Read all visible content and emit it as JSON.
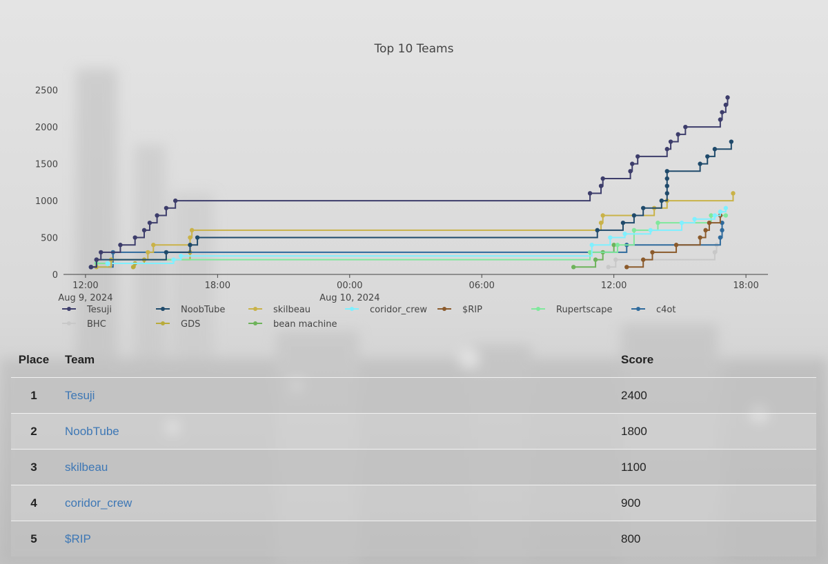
{
  "chart_data": {
    "type": "line",
    "title": "Top 10 Teams",
    "xlabel": "",
    "ylabel": "",
    "ylim": [
      0,
      2600
    ],
    "yticks": [
      0,
      500,
      1000,
      1500,
      2000,
      2500
    ],
    "xlim": [
      "2024-08-09 11:00",
      "2024-08-10 19:00"
    ],
    "xticks": [
      {
        "t": "2024-08-09 12:00",
        "label": "12:00",
        "sub": "Aug 9, 2024"
      },
      {
        "t": "2024-08-09 18:00",
        "label": "18:00",
        "sub": ""
      },
      {
        "t": "2024-08-10 00:00",
        "label": "00:00",
        "sub": "Aug 10, 2024"
      },
      {
        "t": "2024-08-10 06:00",
        "label": "06:00",
        "sub": ""
      },
      {
        "t": "2024-08-10 12:00",
        "label": "12:00",
        "sub": ""
      },
      {
        "t": "2024-08-10 18:00",
        "label": "18:00",
        "sub": ""
      }
    ],
    "grid": false,
    "legend_position": "bottom",
    "series": [
      {
        "name": "Tesuji",
        "color": "#3d3d6b",
        "points": [
          [
            "2024-08-09 12:15",
            100
          ],
          [
            "2024-08-09 12:30",
            200
          ],
          [
            "2024-08-09 12:42",
            300
          ],
          [
            "2024-08-09 13:35",
            400
          ],
          [
            "2024-08-09 14:15",
            500
          ],
          [
            "2024-08-09 14:40",
            600
          ],
          [
            "2024-08-09 14:55",
            700
          ],
          [
            "2024-08-09 15:15",
            800
          ],
          [
            "2024-08-09 15:40",
            900
          ],
          [
            "2024-08-09 16:05",
            1000
          ],
          [
            "2024-08-10 10:55",
            1100
          ],
          [
            "2024-08-10 11:25",
            1200
          ],
          [
            "2024-08-10 11:30",
            1300
          ],
          [
            "2024-08-10 12:45",
            1400
          ],
          [
            "2024-08-10 12:50",
            1500
          ],
          [
            "2024-08-10 13:05",
            1600
          ],
          [
            "2024-08-10 14:25",
            1700
          ],
          [
            "2024-08-10 14:35",
            1800
          ],
          [
            "2024-08-10 14:55",
            1900
          ],
          [
            "2024-08-10 15:15",
            2000
          ],
          [
            "2024-08-10 16:50",
            2100
          ],
          [
            "2024-08-10 16:55",
            2200
          ],
          [
            "2024-08-10 17:05",
            2300
          ],
          [
            "2024-08-10 17:10",
            2400
          ]
        ]
      },
      {
        "name": "NoobTube",
        "color": "#1f4a6b",
        "points": [
          [
            "2024-08-09 12:15",
            100
          ],
          [
            "2024-08-09 12:30",
            200
          ],
          [
            "2024-08-09 15:40",
            300
          ],
          [
            "2024-08-09 16:45",
            400
          ],
          [
            "2024-08-09 17:05",
            500
          ],
          [
            "2024-08-10 11:15",
            600
          ],
          [
            "2024-08-10 12:25",
            700
          ],
          [
            "2024-08-10 12:55",
            800
          ],
          [
            "2024-08-10 13:20",
            900
          ],
          [
            "2024-08-10 14:10",
            1000
          ],
          [
            "2024-08-10 14:25",
            1100
          ],
          [
            "2024-08-10 14:25",
            1200
          ],
          [
            "2024-08-10 14:25",
            1300
          ],
          [
            "2024-08-10 14:25",
            1400
          ],
          [
            "2024-08-10 15:55",
            1500
          ],
          [
            "2024-08-10 16:15",
            1600
          ],
          [
            "2024-08-10 16:35",
            1700
          ],
          [
            "2024-08-10 17:20",
            1800
          ]
        ]
      },
      {
        "name": "skilbeau",
        "color": "#c9b248",
        "points": [
          [
            "2024-08-09 12:30",
            100
          ],
          [
            "2024-08-09 13:10",
            200
          ],
          [
            "2024-08-09 14:50",
            300
          ],
          [
            "2024-08-09 15:05",
            400
          ],
          [
            "2024-08-09 16:45",
            500
          ],
          [
            "2024-08-09 16:50",
            600
          ],
          [
            "2024-08-10 11:25",
            700
          ],
          [
            "2024-08-10 11:30",
            800
          ],
          [
            "2024-08-10 13:50",
            900
          ],
          [
            "2024-08-10 14:25",
            1000
          ],
          [
            "2024-08-10 17:25",
            1100
          ]
        ]
      },
      {
        "name": "coridor_crew",
        "color": "#7ff0ff",
        "points": [
          [
            "2024-08-09 12:30",
            100
          ],
          [
            "2024-08-09 13:00",
            150
          ],
          [
            "2024-08-09 16:00",
            200
          ],
          [
            "2024-08-09 16:20",
            250
          ],
          [
            "2024-08-10 11:00",
            400
          ],
          [
            "2024-08-10 11:50",
            500
          ],
          [
            "2024-08-10 12:30",
            550
          ],
          [
            "2024-08-10 13:40",
            600
          ],
          [
            "2024-08-10 15:05",
            700
          ],
          [
            "2024-08-10 15:40",
            750
          ],
          [
            "2024-08-10 16:35",
            800
          ],
          [
            "2024-08-10 16:50",
            850
          ],
          [
            "2024-08-10 17:05",
            900
          ]
        ]
      },
      {
        "name": "$RIP",
        "color": "#8b5a2b",
        "points": [
          [
            "2024-08-10 12:35",
            100
          ],
          [
            "2024-08-10 13:20",
            200
          ],
          [
            "2024-08-10 13:45",
            300
          ],
          [
            "2024-08-10 14:50",
            400
          ],
          [
            "2024-08-10 15:55",
            500
          ],
          [
            "2024-08-10 16:10",
            600
          ],
          [
            "2024-08-10 16:20",
            700
          ],
          [
            "2024-08-10 16:50",
            800
          ]
        ]
      },
      {
        "name": "Rupertscape",
        "color": "#7fe89c",
        "points": [
          [
            "2024-08-09 12:30",
            150
          ],
          [
            "2024-08-09 13:10",
            200
          ],
          [
            "2024-08-10 10:55",
            300
          ],
          [
            "2024-08-10 12:10",
            400
          ],
          [
            "2024-08-10 12:55",
            600
          ],
          [
            "2024-08-10 14:00",
            700
          ],
          [
            "2024-08-10 16:25",
            800
          ],
          [
            "2024-08-10 17:05",
            800
          ]
        ]
      },
      {
        "name": "c4ot",
        "color": "#2e6a9c",
        "points": [
          [
            "2024-08-09 12:15",
            100
          ],
          [
            "2024-08-09 13:15",
            300
          ],
          [
            "2024-08-10 12:35",
            400
          ],
          [
            "2024-08-10 16:50",
            500
          ],
          [
            "2024-08-10 16:55",
            600
          ],
          [
            "2024-08-10 16:55",
            700
          ]
        ]
      },
      {
        "name": "BHC",
        "color": "#c8c8c8",
        "points": [
          [
            "2024-08-10 11:45",
            100
          ],
          [
            "2024-08-10 12:05",
            200
          ],
          [
            "2024-08-10 16:35",
            300
          ],
          [
            "2024-08-10 16:40",
            400
          ]
        ]
      },
      {
        "name": "GDS",
        "color": "#b9ab3b",
        "points": [
          [
            "2024-08-09 14:10",
            100
          ],
          [
            "2024-08-09 14:15",
            150
          ],
          [
            "2024-08-09 14:40",
            200
          ],
          [
            "2024-08-09 16:45",
            300
          ]
        ]
      },
      {
        "name": "bean machine",
        "color": "#6db35a",
        "points": [
          [
            "2024-08-10 10:10",
            100
          ],
          [
            "2024-08-10 11:10",
            200
          ],
          [
            "2024-08-10 11:30",
            300
          ],
          [
            "2024-08-10 12:00",
            400
          ]
        ]
      }
    ]
  },
  "leaderboard": {
    "headers": {
      "place": "Place",
      "team": "Team",
      "score": "Score"
    },
    "rows": [
      {
        "place": "1",
        "team": "Tesuji",
        "score": "2400"
      },
      {
        "place": "2",
        "team": "NoobTube",
        "score": "1800"
      },
      {
        "place": "3",
        "team": "skilbeau",
        "score": "1100"
      },
      {
        "place": "4",
        "team": "coridor_crew",
        "score": "900"
      },
      {
        "place": "5",
        "team": "$RIP",
        "score": "800"
      }
    ]
  }
}
